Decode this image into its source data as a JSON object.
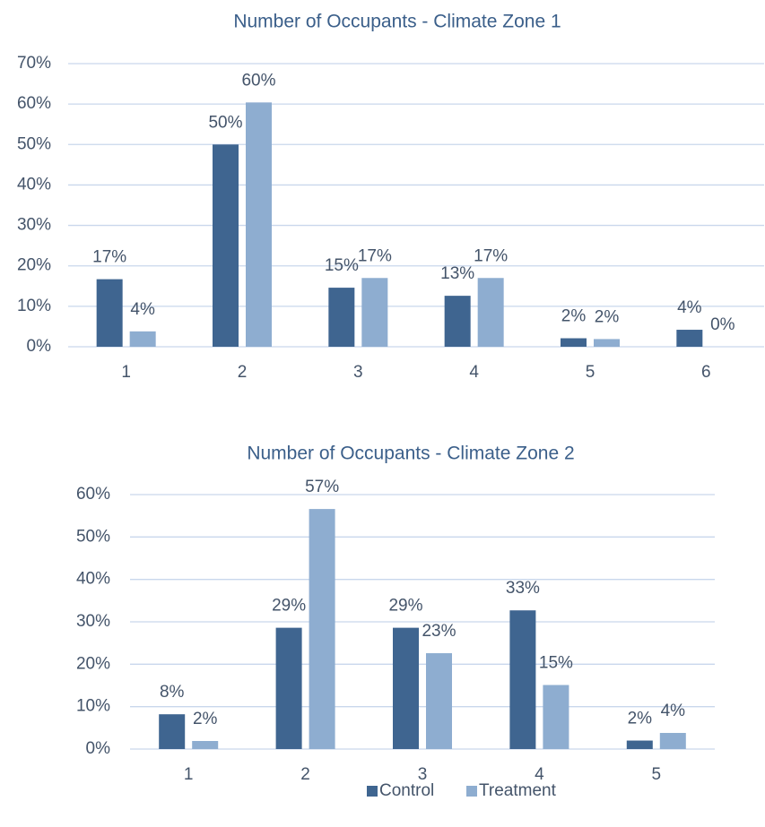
{
  "chart_data": [
    {
      "type": "bar",
      "title": "Number of Occupants - Climate Zone 1",
      "categories": [
        "1",
        "2",
        "3",
        "4",
        "5",
        "6"
      ],
      "series": [
        {
          "color": "#3f6590",
          "values": [
            16.7,
            50,
            14.6,
            12.6,
            2.1,
            4.2
          ],
          "value_labels": [
            "17%",
            "50%",
            "15%",
            "13%",
            "2%",
            "4%"
          ]
        },
        {
          "color": "#8eadd0",
          "values": [
            3.8,
            60.4,
            17,
            17,
            1.9,
            0
          ],
          "value_labels": [
            "4%",
            "60%",
            "17%",
            "17%",
            "2%",
            "0%"
          ]
        }
      ],
      "ylim": [
        0,
        70
      ],
      "yticks": [
        {
          "value": 0,
          "label": "0%"
        },
        {
          "value": 10,
          "label": "10%"
        },
        {
          "value": 20,
          "label": "20%"
        },
        {
          "value": 30,
          "label": "30%"
        },
        {
          "value": 40,
          "label": "40%"
        },
        {
          "value": 50,
          "label": "50%"
        },
        {
          "value": 60,
          "label": "60%"
        },
        {
          "value": 70,
          "label": "70%"
        }
      ],
      "grid": true
    },
    {
      "type": "bar",
      "title": "Number of Occupants - Climate Zone 2",
      "categories": [
        "1",
        "2",
        "3",
        "4",
        "5"
      ],
      "series": [
        {
          "name": "Control",
          "color": "#3f6590",
          "values": [
            8.2,
            28.6,
            28.6,
            32.7,
            2.0
          ],
          "value_labels": [
            "8%",
            "29%",
            "29%",
            "33%",
            "2%"
          ]
        },
        {
          "name": "Treatment",
          "color": "#8eadd0",
          "values": [
            1.9,
            56.6,
            22.6,
            15.1,
            3.8
          ],
          "value_labels": [
            "2%",
            "57%",
            "23%",
            "15%",
            "4%"
          ]
        }
      ],
      "ylim": [
        0,
        60
      ],
      "yticks": [
        {
          "value": 0,
          "label": "0%"
        },
        {
          "value": 10,
          "label": "10%"
        },
        {
          "value": 20,
          "label": "20%"
        },
        {
          "value": 30,
          "label": "30%"
        },
        {
          "value": 40,
          "label": "40%"
        },
        {
          "value": 50,
          "label": "50%"
        },
        {
          "value": 60,
          "label": "60%"
        }
      ],
      "grid": true,
      "legend": "bottom"
    }
  ]
}
